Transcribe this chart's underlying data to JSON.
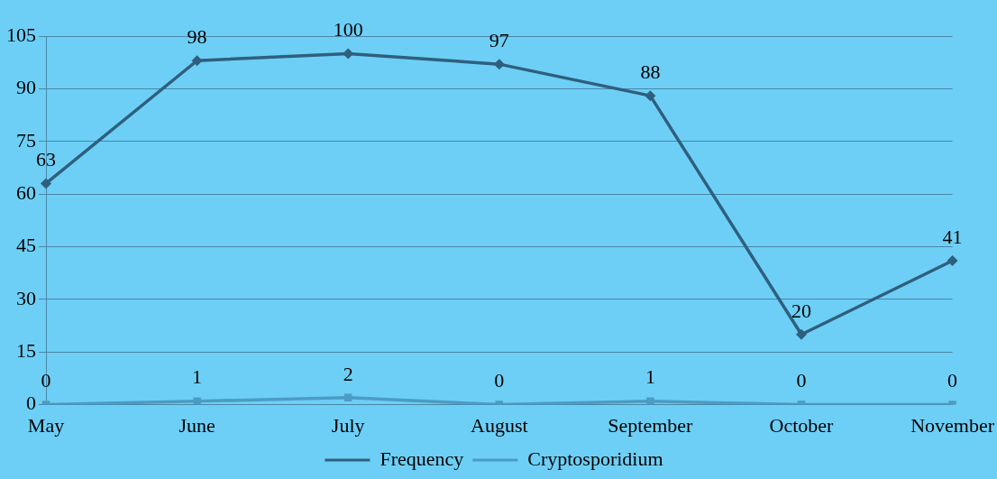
{
  "chart_data": {
    "type": "line",
    "categories": [
      "May",
      "June",
      "July",
      "August",
      "September",
      "October",
      "November"
    ],
    "series": [
      {
        "name": "Frequency",
        "color": "#2f5f7e",
        "marker": "diamond",
        "values": [
          63,
          98,
          100,
          97,
          88,
          20,
          41
        ]
      },
      {
        "name": "Cryptosporidium",
        "color": "#4b9cc4",
        "marker": "square",
        "values": [
          0,
          1,
          2,
          0,
          1,
          0,
          0
        ]
      }
    ],
    "ylim": [
      0,
      105
    ],
    "yticks": [
      0,
      15,
      30,
      45,
      60,
      75,
      90,
      105
    ],
    "grid": "y",
    "legend": "bottom",
    "data_labels": true,
    "line_style": "solid"
  }
}
